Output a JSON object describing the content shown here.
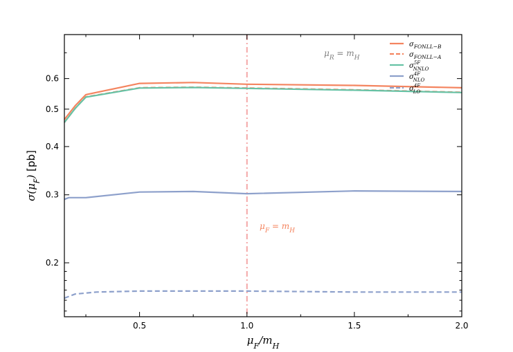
{
  "chart_data": {
    "type": "line",
    "xlabel": "μF/mH",
    "ylabel": "σ(μF) [pb]",
    "xlim": [
      0.15,
      2.0
    ],
    "ylim": [
      0.145,
      0.78
    ],
    "y_scale": "log",
    "x_ticks": [
      {
        "value": 0.5,
        "label": "0.5"
      },
      {
        "value": 1.0,
        "label": "1.0"
      },
      {
        "value": 1.5,
        "label": "1.5"
      },
      {
        "value": 2.0,
        "label": "2.0"
      }
    ],
    "y_ticks": [
      {
        "value": 0.2,
        "label": "0.2"
      },
      {
        "value": 0.3,
        "label": "0.3"
      },
      {
        "value": 0.4,
        "label": "0.4"
      },
      {
        "value": 0.5,
        "label": "0.5"
      },
      {
        "value": 0.6,
        "label": "0.6"
      }
    ],
    "grid": false,
    "legend_position": "top-right",
    "series": [
      {
        "name": "σFONLL−B",
        "style": "solid",
        "color": "#f4845f",
        "x": [
          0.15,
          0.2,
          0.25,
          0.5,
          0.75,
          1.0,
          1.5,
          2.0
        ],
        "y": [
          0.47,
          0.51,
          0.545,
          0.583,
          0.586,
          0.58,
          0.576,
          0.568
        ]
      },
      {
        "name": "σFONLL−A",
        "style": "dashed",
        "color": "#f4845f",
        "x": [
          0.15,
          0.2,
          0.25,
          0.5,
          0.75,
          1.0,
          1.5,
          2.0
        ],
        "y": [
          0.462,
          0.502,
          0.538,
          0.568,
          0.57,
          0.567,
          0.561,
          0.553
        ]
      },
      {
        "name": "σ5FNNLO",
        "style": "solid",
        "color": "#66c2a5",
        "x": [
          0.15,
          0.2,
          0.25,
          0.5,
          0.75,
          1.0,
          1.5,
          2.0
        ],
        "y": [
          0.462,
          0.502,
          0.537,
          0.567,
          0.569,
          0.566,
          0.56,
          0.552
        ]
      },
      {
        "name": "σ4FNLO",
        "style": "solid",
        "color": "#8da0cb",
        "x": [
          0.15,
          0.17,
          0.25,
          0.5,
          0.75,
          1.0,
          1.5,
          2.0
        ],
        "y": [
          0.292,
          0.295,
          0.295,
          0.305,
          0.306,
          0.302,
          0.307,
          0.306
        ]
      },
      {
        "name": "σ4FLO",
        "style": "dashed",
        "color": "#8da0cb",
        "x": [
          0.15,
          0.2,
          0.3,
          0.5,
          0.75,
          1.0,
          1.5,
          2.0
        ],
        "y": [
          0.162,
          0.166,
          0.168,
          0.169,
          0.169,
          0.169,
          0.168,
          0.168
        ]
      }
    ],
    "annotations": [
      {
        "text": "μR = mH",
        "color": "#808080"
      },
      {
        "text": "μF = mH",
        "color": "#f4845f"
      }
    ],
    "vertical_line": {
      "x": 1.0,
      "color": "#f4a6a6",
      "style": "dash-dot"
    }
  }
}
